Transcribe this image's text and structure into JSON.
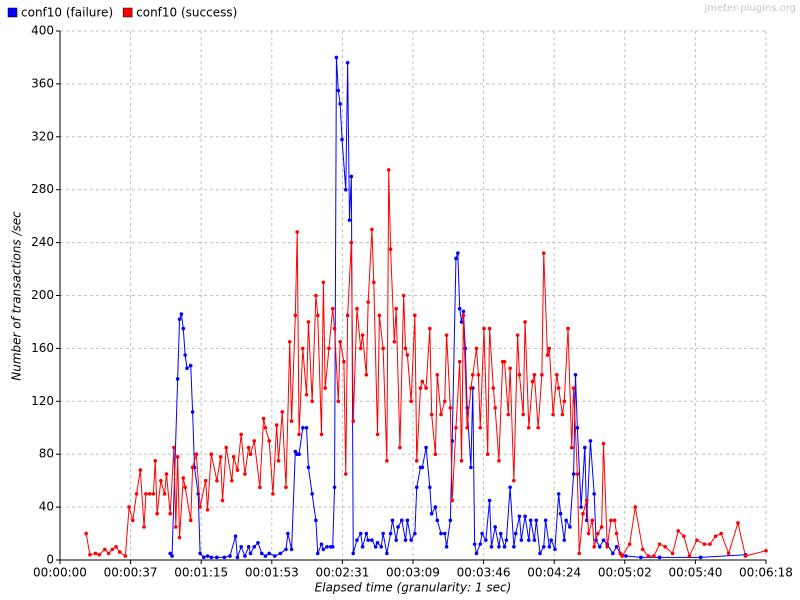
{
  "chart_data": {
    "type": "line",
    "watermark": "jmeter-plugins.org",
    "ylabel": "Number of transactions /sec",
    "xlabel": "Elapsed time (granularity: 1 sec)",
    "xlim": [
      0,
      378
    ],
    "ylim": [
      0,
      400
    ],
    "xticks": [
      {
        "value": 0,
        "label": "00:00:00"
      },
      {
        "value": 37.8,
        "label": "00:00:37"
      },
      {
        "value": 75.6,
        "label": "00:01:15"
      },
      {
        "value": 113.4,
        "label": "00:01:53"
      },
      {
        "value": 151.2,
        "label": "00:02:31"
      },
      {
        "value": 189,
        "label": "00:03:09"
      },
      {
        "value": 226.8,
        "label": "00:03:46"
      },
      {
        "value": 264.6,
        "label": "00:04:24"
      },
      {
        "value": 302.4,
        "label": "00:05:02"
      },
      {
        "value": 340.2,
        "label": "00:05:40"
      },
      {
        "value": 378,
        "label": "00:06:18"
      }
    ],
    "yticks": [
      0,
      40,
      80,
      120,
      160,
      200,
      240,
      280,
      320,
      360,
      400
    ],
    "grid": true,
    "legend": "top-left",
    "series": [
      {
        "name": "conf10 (failure)",
        "color": "#0000ff",
        "x": [
          59,
          60,
          63,
          64,
          65,
          66,
          67,
          68,
          70,
          71,
          72,
          74,
          75,
          77,
          79,
          81,
          84,
          88,
          91,
          94,
          95,
          97,
          99,
          101,
          102,
          104,
          106,
          108,
          110,
          112,
          115,
          118,
          121,
          122,
          124,
          126,
          127,
          128,
          130,
          132,
          133,
          135,
          137,
          138,
          140,
          141,
          143,
          145,
          146,
          147,
          148,
          149,
          150,
          151,
          153,
          154,
          155,
          156,
          157,
          159,
          161,
          162,
          164,
          165,
          167,
          169,
          170,
          172,
          173,
          175,
          177,
          178,
          180,
          181,
          183,
          185,
          186,
          188,
          190,
          191,
          193,
          194,
          196,
          198,
          199,
          201,
          202,
          204,
          206,
          207,
          209,
          210,
          212,
          213,
          214,
          215,
          216,
          217,
          218,
          220,
          221,
          222,
          223,
          225,
          226,
          228,
          230,
          231,
          233,
          235,
          236,
          238,
          239,
          241,
          243,
          244,
          246,
          247,
          249,
          251,
          252,
          254,
          255,
          257,
          259,
          260,
          262,
          263,
          265,
          267,
          268,
          270,
          271,
          273,
          275,
          276,
          277,
          279,
          281,
          282,
          284,
          286,
          287,
          289,
          291,
          293,
          296,
          298,
          300,
          303,
          311,
          321,
          343,
          367
        ],
        "values": [
          5,
          3,
          137,
          182,
          186,
          175,
          155,
          145,
          147,
          112,
          70,
          50,
          5,
          2,
          3,
          2,
          2,
          2,
          3,
          18,
          2,
          10,
          3,
          10,
          5,
          10,
          13,
          5,
          3,
          5,
          3,
          5,
          8,
          20,
          8,
          82,
          80,
          80,
          100,
          100,
          70,
          50,
          30,
          5,
          12,
          8,
          10,
          10,
          10,
          55,
          380,
          355,
          345,
          318,
          280,
          376,
          257,
          290,
          5,
          15,
          20,
          10,
          20,
          15,
          15,
          10,
          13,
          10,
          20,
          5,
          20,
          30,
          15,
          25,
          30,
          15,
          30,
          15,
          20,
          55,
          70,
          70,
          85,
          55,
          35,
          40,
          30,
          20,
          20,
          10,
          30,
          90,
          228,
          232,
          190,
          180,
          188,
          160,
          115,
          70,
          130,
          12,
          5,
          12,
          20,
          15,
          45,
          10,
          25,
          10,
          20,
          10,
          15,
          55,
          10,
          20,
          33,
          15,
          33,
          15,
          30,
          15,
          30,
          5,
          10,
          30,
          10,
          15,
          8,
          50,
          35,
          15,
          30,
          25,
          65,
          140,
          100,
          40,
          85,
          30,
          90,
          50,
          15,
          10,
          15,
          12,
          5,
          10,
          5,
          3,
          2,
          2,
          2,
          4
        ]
      },
      {
        "name": "conf10 (success)",
        "color": "#ff0000",
        "x": [
          14,
          16,
          19,
          21,
          24,
          26,
          28,
          30,
          32,
          35,
          37,
          39,
          41,
          43,
          45,
          46,
          48,
          50,
          51,
          52,
          54,
          56,
          57,
          59,
          61,
          62,
          63,
          64,
          66,
          67,
          70,
          71,
          73,
          75,
          78,
          79,
          81,
          84,
          86,
          87,
          89,
          92,
          93,
          95,
          97,
          99,
          101,
          102,
          104,
          107,
          109,
          110,
          112,
          114,
          116,
          117,
          119,
          121,
          123,
          124,
          126,
          127,
          128,
          130,
          132,
          133,
          135,
          137,
          138,
          140,
          141,
          142,
          144,
          146,
          147,
          149,
          150,
          152,
          153,
          154,
          156,
          157,
          159,
          161,
          162,
          164,
          165,
          167,
          168,
          170,
          171,
          173,
          175,
          176,
          177,
          179,
          180,
          182,
          184,
          185,
          186,
          188,
          190,
          191,
          193,
          194,
          196,
          198,
          199,
          201,
          202,
          204,
          206,
          207,
          209,
          210,
          212,
          214,
          215,
          216,
          218,
          220,
          221,
          223,
          224,
          225,
          227,
          229,
          230,
          232,
          233,
          235,
          237,
          238,
          240,
          241,
          243,
          245,
          246,
          248,
          249,
          251,
          253,
          254,
          256,
          258,
          259,
          261,
          262,
          264,
          266,
          267,
          269,
          270,
          272,
          274,
          275,
          277,
          278,
          280,
          282,
          283,
          285,
          286,
          288,
          290,
          291,
          293,
          295,
          297,
          298,
          300,
          301,
          305,
          308,
          312,
          315,
          318,
          321,
          324,
          328,
          331,
          334,
          337,
          341,
          345,
          348,
          351,
          354,
          358,
          363,
          367,
          378
        ],
        "values": [
          20,
          4,
          5,
          4,
          8,
          5,
          8,
          10,
          6,
          3,
          40,
          30,
          50,
          68,
          25,
          50,
          50,
          50,
          75,
          35,
          60,
          50,
          65,
          35,
          85,
          25,
          78,
          17,
          62,
          55,
          30,
          70,
          80,
          40,
          60,
          38,
          80,
          60,
          78,
          45,
          85,
          60,
          78,
          68,
          95,
          65,
          85,
          80,
          90,
          55,
          107,
          100,
          90,
          50,
          102,
          75,
          112,
          55,
          165,
          105,
          185,
          248,
          95,
          160,
          125,
          180,
          120,
          200,
          185,
          95,
          210,
          130,
          160,
          190,
          175,
          120,
          165,
          150,
          65,
          185,
          240,
          105,
          190,
          160,
          170,
          140,
          195,
          250,
          210,
          95,
          185,
          160,
          75,
          295,
          235,
          165,
          190,
          85,
          200,
          160,
          155,
          120,
          185,
          75,
          130,
          135,
          130,
          175,
          110,
          80,
          140,
          110,
          120,
          170,
          115,
          45,
          100,
          150,
          75,
          185,
          100,
          130,
          140,
          160,
          140,
          100,
          175,
          80,
          175,
          130,
          115,
          75,
          150,
          150,
          110,
          145,
          60,
          170,
          140,
          110,
          180,
          100,
          135,
          140,
          100,
          140,
          232,
          155,
          160,
          110,
          140,
          130,
          110,
          120,
          175,
          85,
          130,
          65,
          5,
          35,
          45,
          20,
          30,
          10,
          20,
          25,
          88,
          10,
          30,
          30,
          20,
          5,
          3,
          12,
          40,
          8,
          3,
          3,
          12,
          10,
          5,
          22,
          18,
          3,
          15,
          12,
          12,
          18,
          20,
          5,
          28,
          3,
          7
        ]
      }
    ]
  }
}
